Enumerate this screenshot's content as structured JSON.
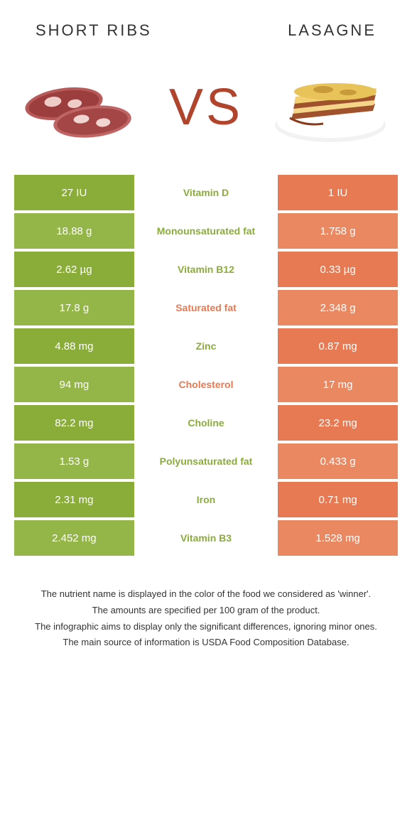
{
  "colors": {
    "left_food": "#8aad3a",
    "left_food_alt": "#94b548",
    "right_food": "#e77a52",
    "right_food_alt": "#ea8862",
    "vs_text": "#b0442c",
    "title_text": "#333333",
    "footer_text": "#333333",
    "background": "#ffffff"
  },
  "titles": {
    "left": "SHORT RIBS",
    "right": "LASAGNE"
  },
  "vs_label": "VS",
  "rows": [
    {
      "left": "27 IU",
      "mid": "Vitamin D",
      "right": "1 IU",
      "winner": "left"
    },
    {
      "left": "18.88 g",
      "mid": "Monounsaturated fat",
      "right": "1.758 g",
      "winner": "left"
    },
    {
      "left": "2.62 µg",
      "mid": "Vitamin B12",
      "right": "0.33 µg",
      "winner": "left"
    },
    {
      "left": "17.8 g",
      "mid": "Saturated fat",
      "right": "2.348 g",
      "winner": "right"
    },
    {
      "left": "4.88 mg",
      "mid": "Zinc",
      "right": "0.87 mg",
      "winner": "left"
    },
    {
      "left": "94 mg",
      "mid": "Cholesterol",
      "right": "17 mg",
      "winner": "right"
    },
    {
      "left": "82.2 mg",
      "mid": "Choline",
      "right": "23.2 mg",
      "winner": "left"
    },
    {
      "left": "1.53 g",
      "mid": "Polyunsaturated fat",
      "right": "0.433 g",
      "winner": "left"
    },
    {
      "left": "2.31 mg",
      "mid": "Iron",
      "right": "0.71 mg",
      "winner": "left"
    },
    {
      "left": "2.452 mg",
      "mid": "Vitamin B3",
      "right": "1.528 mg",
      "winner": "left"
    }
  ],
  "footer": [
    "The nutrient name is displayed in the color of the food we considered as 'winner'.",
    "The amounts are specified per 100 gram of the product.",
    "The infographic aims to display only the significant differences, ignoring minor ones.",
    "The main source of information is USDA Food Composition Database."
  ]
}
